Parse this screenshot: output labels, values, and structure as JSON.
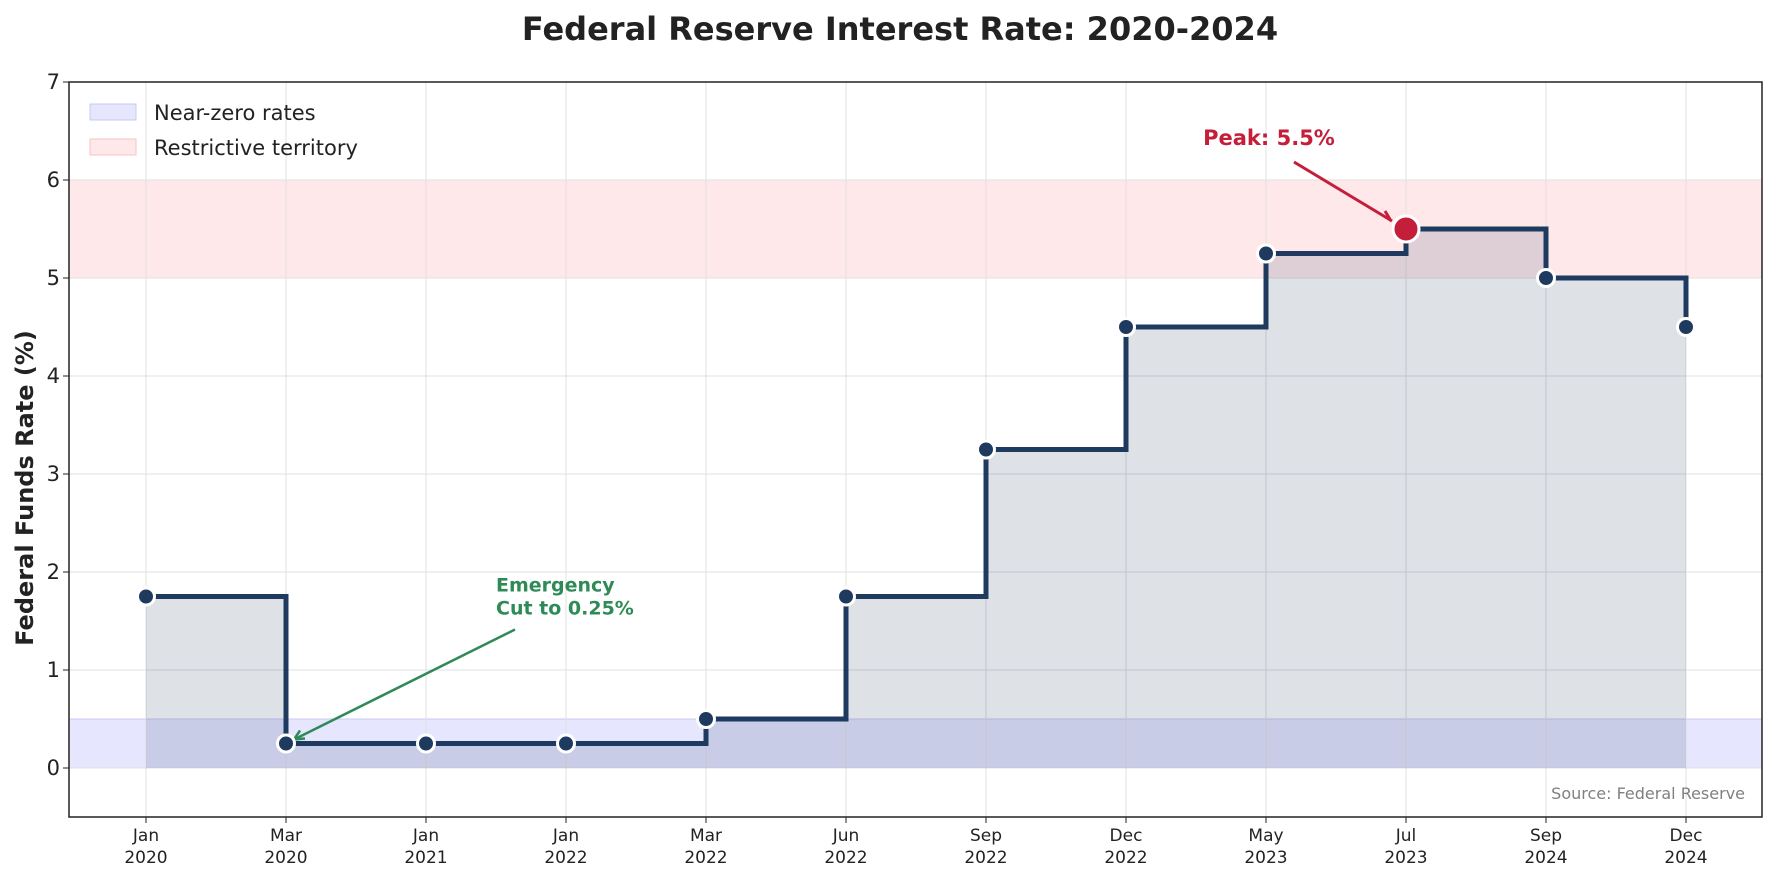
{
  "chart_data": {
    "type": "line",
    "step": "post",
    "title": "Federal Reserve Interest Rate: 2020-2024",
    "xlabel": "",
    "ylabel": "Federal Funds Rate (%)",
    "ylim": [
      -0.5,
      7
    ],
    "yticks": [
      0,
      1,
      2,
      3,
      4,
      5,
      6,
      7
    ],
    "grid": true,
    "categories": [
      "Jan\n2020",
      "Mar\n2020",
      "Jan\n2021",
      "Jan\n2022",
      "Mar\n2022",
      "Jun\n2022",
      "Sep\n2022",
      "Dec\n2022",
      "May\n2023",
      "Jul\n2023",
      "Sep\n2024",
      "Dec\n2024"
    ],
    "series": [
      {
        "values": [
          1.75,
          0.25,
          0.25,
          0.25,
          0.5,
          1.75,
          3.25,
          4.5,
          5.25,
          5.5,
          5.0,
          4.5
        ]
      }
    ],
    "bands": [
      {
        "label": "Near-zero rates",
        "y0": 0,
        "y1": 0.5,
        "color": "#e6e6ff"
      },
      {
        "label": "Restrictive territory",
        "y0": 5,
        "y1": 6,
        "color": "#ffe8ea"
      }
    ],
    "legend": {
      "placement": "top-left"
    },
    "annotations": [
      {
        "text": "Peak: 5.5%",
        "point_index": 9,
        "color": "#c41e3a"
      },
      {
        "text": "Emergency\nCut to 0.25%",
        "point_index": 1,
        "color": "#2e8b57"
      }
    ],
    "source_note": "Source: Federal Reserve",
    "colors": {
      "line": "#1f3a5f",
      "fill": "#1f3a5f",
      "peak": "#c41e3a",
      "emergency": "#2e8b57",
      "grid": "#e0e0e0"
    }
  }
}
